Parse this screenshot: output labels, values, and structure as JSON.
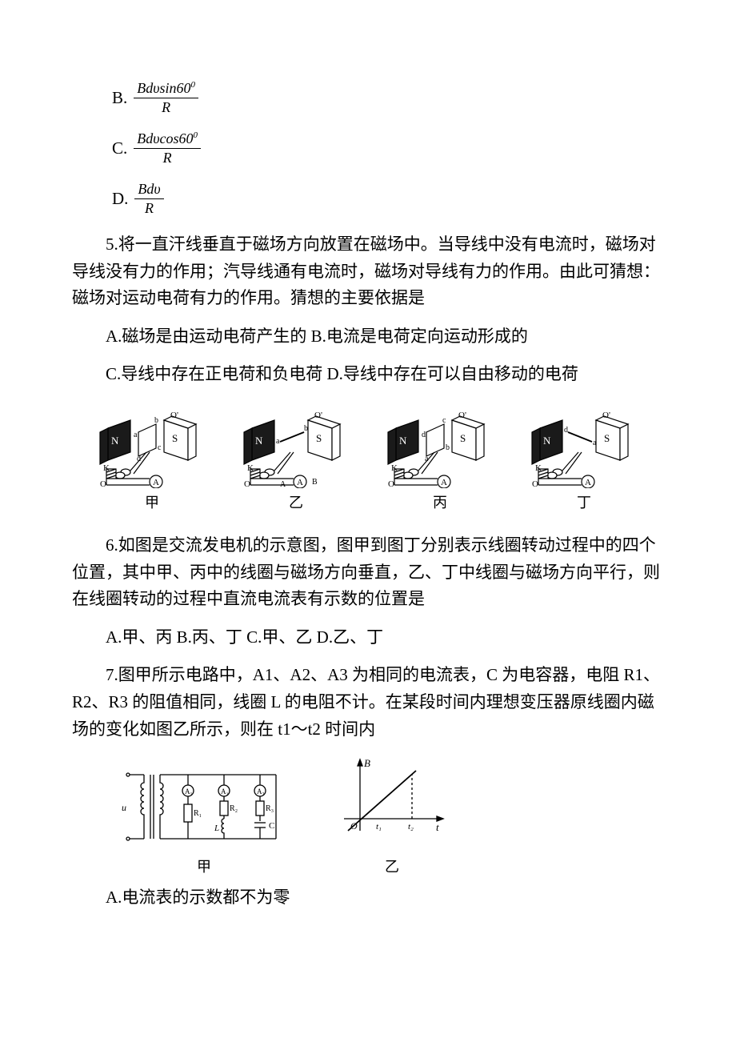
{
  "options_q4": {
    "B": {
      "letter": "B.",
      "numerator": "Bdυsin60",
      "superscript": "0",
      "denominator": "R"
    },
    "C": {
      "letter": "C.",
      "numerator": "Bdυcos60",
      "superscript": "0",
      "denominator": "R"
    },
    "D": {
      "letter": "D.",
      "numerator": "Bdυ",
      "superscript": "",
      "denominator": "R"
    }
  },
  "q5": {
    "text": "5.将一直汗线垂直于磁场方向放置在磁场中。当导线中没有电流时，磁场对导线没有力的作用；汽导线通有电流时，磁场对导线有力的作用。由此可猜想：磁场对运动电荷有力的作用。猜想的主要依据是",
    "optA": "A.磁场是由运动电荷产生的 B.电流是电荷定向运动形成的",
    "optC": "C.导线中存在正电荷和负电荷  D.导线中存在可以自由移动的电荷"
  },
  "q6": {
    "captions": [
      "甲",
      "乙",
      "丙",
      "丁"
    ],
    "text": "6.如图是交流发电机的示意图，图甲到图丁分别表示线圈转动过程中的四个位置，其中甲、丙中的线圈与磁场方向垂直，乙、丁中线圈与磁场方向平行，则在线圈转动的过程中直流电流表有示数的位置是",
    "options": "A.甲、丙 B.丙、丁 C.甲、乙 D.乙、丁",
    "fig_labels": {
      "N": "N",
      "S": "S",
      "a": "a",
      "b": "b",
      "c": "c",
      "d": "d",
      "K": "K",
      "O": "O",
      "Op": "O'",
      "A": "A",
      "B": "B"
    },
    "fig_colors": {
      "stroke": "#000000",
      "fill_dark": "#1a1a1a",
      "fill_white": "#ffffff"
    }
  },
  "q7": {
    "text": "7.图甲所示电路中，A1、A2、A3 为相同的电流表，C 为电容器，电阻 R1、R2、R3 的阻值相同，线圈 L 的电阻不计。在某段时间内理想变压器原线圈内磁场的变化如图乙所示，则在 t1～t2 时间内",
    "captions": [
      "甲",
      "乙"
    ],
    "optA": "A.电流表的示数都不为零",
    "fig_labels": {
      "u": "u",
      "A1": "A₁",
      "A2": "A₂",
      "A3": "A₃",
      "R1": "R₁",
      "R2": "R₂",
      "R3": "R₃",
      "L": "L",
      "C": "C",
      "B": "B",
      "O": "O",
      "t": "t",
      "t1": "t₁",
      "t2": "t₂"
    },
    "fig_colors": {
      "stroke": "#000000",
      "fill_white": "#ffffff"
    }
  }
}
